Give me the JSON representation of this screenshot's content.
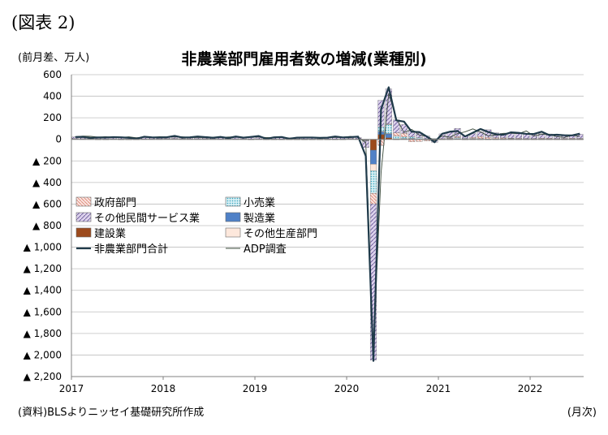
{
  "figure_label": "(図表 2)",
  "title": "非農業部門雇用者数の増減(業種別)",
  "unit_label": "(前月差、万人)",
  "source": "(資料)BLSよりニッセイ基礎研究所作成",
  "x_unit_label": "(月次)",
  "chart_data": {
    "type": "bar",
    "title": "非農業部門雇用者数の増減(業種別)",
    "ylabel": "(前月差、万人)",
    "xlabel": "(月次)",
    "ylim": [
      -2200,
      600
    ],
    "yticks": [
      600,
      400,
      200,
      0,
      -200,
      -400,
      -600,
      -800,
      -1000,
      -1200,
      -1400,
      -1600,
      -1800,
      -2000,
      -2200
    ],
    "ytick_labels": [
      "600",
      "400",
      "200",
      "0",
      "▲ 200",
      "▲ 400",
      "▲ 600",
      "▲ 800",
      "▲ 1,000",
      "▲ 1,200",
      "▲ 1,400",
      "▲ 1,600",
      "▲ 1,800",
      "▲ 2,000",
      "▲ 2,200"
    ],
    "x_tick_labels": [
      "2017",
      "2018",
      "2019",
      "2020",
      "2021",
      "2022"
    ],
    "x_start": "2017-01",
    "x_end": "2022-07",
    "grid": "horizontal",
    "legend": [
      {
        "name": "政府部門",
        "kind": "bar",
        "color": "#f3c7c0"
      },
      {
        "name": "小売業",
        "kind": "bar",
        "color": "#a9dde8"
      },
      {
        "name": "その他民間サービス業",
        "kind": "bar",
        "color": "#c8b9dc"
      },
      {
        "name": "製造業",
        "kind": "bar",
        "color": "#4f81c7"
      },
      {
        "name": "建設業",
        "kind": "bar",
        "color": "#9c4a1c"
      },
      {
        "name": "その他生産部門",
        "kind": "bar",
        "color": "#fbd9c8"
      },
      {
        "name": "非農業部門合計",
        "kind": "line",
        "color": "#1f3a4a"
      },
      {
        "name": "ADP調査",
        "kind": "line",
        "color": "#3a4a3a"
      }
    ],
    "months": [
      "2017-01",
      "2017-02",
      "2017-03",
      "2017-04",
      "2017-05",
      "2017-06",
      "2017-07",
      "2017-08",
      "2017-09",
      "2017-10",
      "2017-11",
      "2017-12",
      "2018-01",
      "2018-02",
      "2018-03",
      "2018-04",
      "2018-05",
      "2018-06",
      "2018-07",
      "2018-08",
      "2018-09",
      "2018-10",
      "2018-11",
      "2018-12",
      "2019-01",
      "2019-02",
      "2019-03",
      "2019-04",
      "2019-05",
      "2019-06",
      "2019-07",
      "2019-08",
      "2019-09",
      "2019-10",
      "2019-11",
      "2019-12",
      "2020-01",
      "2020-02",
      "2020-03",
      "2020-04",
      "2020-05",
      "2020-06",
      "2020-07",
      "2020-08",
      "2020-09",
      "2020-10",
      "2020-11",
      "2020-12",
      "2021-01",
      "2021-02",
      "2021-03",
      "2021-04",
      "2021-05",
      "2021-06",
      "2021-07",
      "2021-08",
      "2021-09",
      "2021-10",
      "2021-11",
      "2021-12",
      "2022-01",
      "2022-02",
      "2022-03",
      "2022-04",
      "2022-05",
      "2022-06",
      "2022-07"
    ],
    "series": [
      {
        "name": "政府部門",
        "values": [
          1,
          1,
          1,
          1,
          1,
          1,
          1,
          0,
          1,
          1,
          1,
          1,
          1,
          1,
          1,
          1,
          1,
          1,
          1,
          1,
          1,
          1,
          1,
          1,
          1,
          1,
          1,
          1,
          1,
          1,
          1,
          1,
          1,
          1,
          1,
          1,
          1,
          1,
          -2,
          -98,
          -57,
          6,
          30,
          34,
          -22,
          -20,
          -10,
          -8,
          3,
          5,
          10,
          -2,
          10,
          20,
          15,
          10,
          8,
          5,
          5,
          3,
          3,
          5,
          5,
          3,
          5,
          5,
          4
        ]
      },
      {
        "name": "小売業",
        "values": [
          2,
          1,
          1,
          2,
          1,
          1,
          1,
          1,
          1,
          1,
          1,
          1,
          1,
          1,
          1,
          2,
          2,
          2,
          1,
          1,
          1,
          1,
          1,
          1,
          1,
          1,
          1,
          1,
          1,
          1,
          1,
          1,
          1,
          1,
          1,
          1,
          1,
          1,
          -5,
          -210,
          37,
          83,
          26,
          16,
          15,
          11,
          -4,
          5,
          0,
          5,
          10,
          5,
          5,
          5,
          0,
          2,
          3,
          3,
          1,
          1,
          1,
          1,
          1,
          1,
          1,
          1,
          1
        ]
      },
      {
        "name": "その他民間サービス業",
        "values": [
          15,
          12,
          11,
          14,
          12,
          13,
          13,
          12,
          13,
          14,
          12,
          12,
          13,
          12,
          14,
          14,
          13,
          13,
          13,
          12,
          12,
          12,
          13,
          12,
          14,
          13,
          12,
          13,
          12,
          12,
          13,
          12,
          12,
          13,
          12,
          12,
          14,
          14,
          -60,
          -1450,
          250,
          325,
          120,
          80,
          55,
          45,
          25,
          -20,
          45,
          55,
          75,
          20,
          35,
          45,
          70,
          45,
          42,
          45,
          45,
          40,
          38,
          42,
          40,
          35,
          34,
          28,
          40
        ]
      },
      {
        "name": "製造業",
        "values": [
          1,
          2,
          2,
          1,
          1,
          1,
          1,
          1,
          1,
          1,
          1,
          1,
          2,
          2,
          2,
          1,
          1,
          2,
          1,
          1,
          1,
          1,
          1,
          1,
          1,
          1,
          1,
          1,
          1,
          1,
          1,
          1,
          1,
          1,
          1,
          0,
          1,
          1,
          -2,
          -130,
          25,
          36,
          3,
          4,
          7,
          4,
          3,
          3,
          2,
          2,
          3,
          3,
          3,
          1,
          3,
          3,
          3,
          3,
          3,
          3,
          3,
          3,
          3,
          2,
          2,
          3,
          3
        ]
      },
      {
        "name": "建設業",
        "values": [
          3,
          2,
          2,
          1,
          1,
          2,
          1,
          1,
          1,
          2,
          2,
          2,
          3,
          3,
          2,
          2,
          2,
          2,
          2,
          2,
          2,
          2,
          2,
          1,
          2,
          1,
          1,
          1,
          1,
          1,
          1,
          1,
          1,
          1,
          1,
          1,
          4,
          2,
          -5,
          -100,
          45,
          15,
          1,
          2,
          1,
          1,
          3,
          1,
          1,
          1,
          3,
          1,
          1,
          1,
          1,
          1,
          1,
          1,
          1,
          1,
          1,
          1,
          1,
          1,
          1,
          1,
          1
        ]
      },
      {
        "name": "その他生産部門",
        "values": [
          0,
          0,
          0,
          0,
          0,
          0,
          0,
          0,
          0,
          0,
          0,
          0,
          0,
          0,
          0,
          0,
          0,
          0,
          0,
          0,
          0,
          0,
          0,
          0,
          0,
          0,
          0,
          0,
          0,
          0,
          0,
          0,
          0,
          0,
          0,
          0,
          0,
          0,
          -1,
          -60,
          5,
          3,
          1,
          1,
          1,
          0,
          0,
          0,
          0,
          0,
          0,
          0,
          0,
          0,
          0,
          0,
          0,
          0,
          0,
          0,
          0,
          0,
          0,
          0,
          0,
          0,
          0
        ]
      },
      {
        "name": "非農業部門合計",
        "values": [
          22,
          23,
          13,
          18,
          17,
          21,
          19,
          15,
          6,
          24,
          19,
          17,
          20,
          32,
          17,
          19,
          26,
          21,
          15,
          23,
          12,
          26,
          16,
          23,
          31,
          5,
          19,
          22,
          6,
          16,
          17,
          17,
          14,
          16,
          26,
          18,
          21,
          25,
          -154,
          -2055,
          279,
          483,
          176,
          165,
          71,
          68,
          26,
          -27,
          52,
          71,
          78,
          27,
          61,
          96,
          69,
          48,
          42,
          65,
          60,
          51,
          50,
          71,
          39,
          43,
          38,
          37,
          53
        ]
      },
      {
        "name": "ADP調査",
        "values": [
          25,
          30,
          28,
          21,
          25,
          19,
          18,
          24,
          14,
          22,
          19,
          25,
          23,
          24,
          24,
          17,
          18,
          17,
          20,
          17,
          22,
          23,
          18,
          26,
          21,
          17,
          13,
          23,
          8,
          13,
          17,
          17,
          14,
          16,
          18,
          20,
          27,
          18,
          -30,
          -1960,
          -310,
          424,
          192,
          63,
          93,
          39,
          28,
          -10,
          31,
          20,
          54,
          70,
          97,
          69,
          33,
          38,
          56,
          57,
          53,
          78,
          30,
          47,
          47,
          25,
          18,
          39,
          27
        ]
      }
    ]
  }
}
